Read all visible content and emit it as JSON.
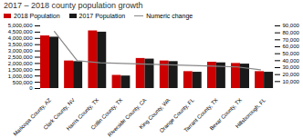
{
  "chart_data": {
    "type": "bar",
    "title": "2017 – 2018 county population growth",
    "categories": [
      "Maricopa County, AZ",
      "Clark County, NV",
      "Harris County, TX",
      "Collin County, TX",
      "Riverside County, CA",
      "King County, WA",
      "Orange County, FL",
      "Tarrant County, TX",
      "Bexar County, TX",
      "Hillsborough, FL"
    ],
    "series": [
      {
        "name": "2018 Population",
        "color": "#cc0000",
        "values": [
          4200000,
          2200000,
          4600000,
          1050000,
          2400000,
          2200000,
          1350000,
          2100000,
          2000000,
          1350000
        ]
      },
      {
        "name": "2017 Population",
        "color": "#1a1a1a",
        "values": [
          4100000,
          2150000,
          4500000,
          1000000,
          2350000,
          2150000,
          1300000,
          2050000,
          1950000,
          1300000
        ]
      },
      {
        "name": "Numeric change",
        "type": "line",
        "axis": "y2",
        "color": "#888888",
        "values": [
          82000,
          40000,
          37000,
          36000,
          35000,
          34000,
          33000,
          32000,
          31000,
          27000
        ]
      }
    ],
    "ylim": [
      0,
      5000000
    ],
    "yticks": [
      0,
      {
        "value": 500000,
        "label": "500,000"
      },
      {
        "value": 1000000,
        "label": "1,000,000"
      },
      {
        "value": 1500000,
        "label": "1,500,000"
      },
      {
        "value": 2000000,
        "label": "2,000,000"
      },
      {
        "value": 2500000,
        "label": "2,500,000"
      },
      {
        "value": 3000000,
        "label": "3,000,000"
      },
      {
        "value": 3500000,
        "label": "3,500,000"
      },
      {
        "value": 4000000,
        "label": "4,000,000"
      },
      {
        "value": 4500000,
        "label": "4,500,000"
      },
      {
        "value": 5000000,
        "label": "5,000,000"
      }
    ],
    "y2lim": [
      0,
      90000
    ],
    "y2ticks": [
      {
        "value": 10000,
        "label": "10,000"
      },
      {
        "value": 20000,
        "label": "20,000"
      },
      {
        "value": 30000,
        "label": "30,000"
      },
      {
        "value": 40000,
        "label": "40,000"
      },
      {
        "value": 50000,
        "label": "50,000"
      },
      {
        "value": 60000,
        "label": "60,000"
      },
      {
        "value": 70000,
        "label": "70,000"
      },
      {
        "value": 80000,
        "label": "80,000"
      },
      {
        "value": 90000,
        "label": "90,000"
      }
    ],
    "grid": false,
    "legend": "upper left"
  }
}
